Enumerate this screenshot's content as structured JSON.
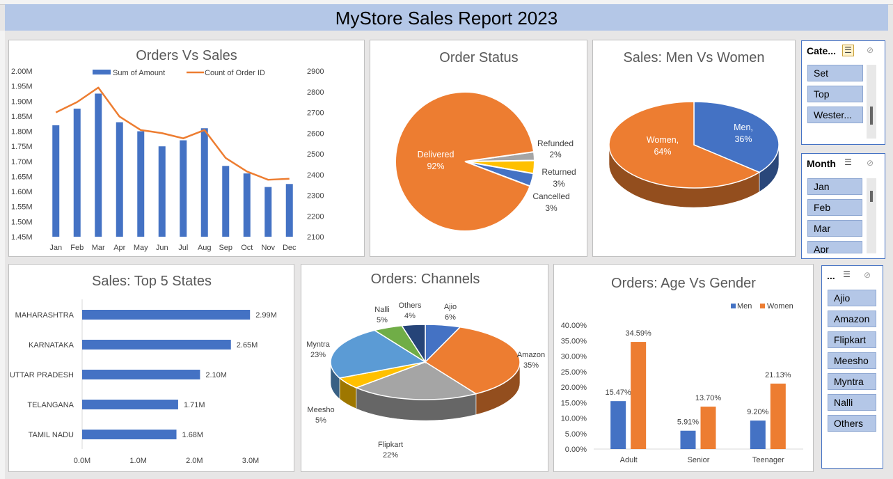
{
  "report_title": "MyStore Sales Report 2023",
  "colors": {
    "blue": "#4472c4",
    "orange": "#ed7d31",
    "gray": "#a5a5a5",
    "yellow": "#ffc000",
    "lightblue": "#5b9bd5",
    "green": "#70ad47",
    "navy": "#264478",
    "banner": "#b4c7e7"
  },
  "chart_data": [
    {
      "id": "orders-vs-sales",
      "type": "bar+line",
      "title": "Orders Vs Sales",
      "categories": [
        "Jan",
        "Feb",
        "Mar",
        "Apr",
        "May",
        "Jun",
        "Jul",
        "Aug",
        "Sep",
        "Oct",
        "Nov",
        "Dec"
      ],
      "series": [
        {
          "name": "Sum of Amount",
          "type": "bar",
          "axis": "left",
          "values": [
            1.82,
            1.875,
            1.925,
            1.83,
            1.8,
            1.75,
            1.77,
            1.81,
            1.685,
            1.66,
            1.615,
            1.625
          ]
        },
        {
          "name": "Count of Order ID",
          "type": "line",
          "axis": "right",
          "values": [
            2700,
            2750,
            2820,
            2680,
            2615,
            2600,
            2575,
            2615,
            2480,
            2415,
            2375,
            2380
          ]
        }
      ],
      "y_left": {
        "min": 1.45,
        "max": 2.0,
        "ticks": [
          "2.00M",
          "1.95M",
          "1.90M",
          "1.85M",
          "1.80M",
          "1.75M",
          "1.70M",
          "1.65M",
          "1.60M",
          "1.55M",
          "1.50M",
          "1.45M"
        ]
      },
      "y_right": {
        "min": 2100,
        "max": 2900,
        "ticks": [
          "2900",
          "2800",
          "2700",
          "2600",
          "2500",
          "2400",
          "2300",
          "2200",
          "2100"
        ]
      }
    },
    {
      "id": "order-status",
      "type": "pie",
      "title": "Order Status",
      "slices": [
        {
          "name": "Delivered",
          "pct": "92%",
          "value": 92
        },
        {
          "name": "Refunded",
          "pct": "2%",
          "value": 2
        },
        {
          "name": "Returned",
          "pct": "3%",
          "value": 3
        },
        {
          "name": "Cancelled",
          "pct": "3%",
          "value": 3
        }
      ]
    },
    {
      "id": "men-vs-women",
      "type": "pie",
      "title": "Sales: Men Vs Women",
      "slices": [
        {
          "name": "Men,",
          "pct": "36%",
          "value": 36
        },
        {
          "name": "Women,",
          "pct": "64%",
          "value": 64
        }
      ]
    },
    {
      "id": "top-states",
      "type": "bar",
      "orientation": "horizontal",
      "title": "Sales: Top 5 States",
      "categories": [
        "MAHARASHTRA",
        "KARNATAKA",
        "UTTAR PRADESH",
        "TELANGANA",
        "TAMIL NADU"
      ],
      "values": [
        2.99,
        2.65,
        2.1,
        1.71,
        1.68
      ],
      "value_labels": [
        "2.99M",
        "2.65M",
        "2.10M",
        "1.71M",
        "1.68M"
      ],
      "xlim": [
        0,
        3
      ],
      "x_ticks": [
        "0.0M",
        "1.0M",
        "2.0M",
        "3.0M"
      ]
    },
    {
      "id": "channels",
      "type": "pie",
      "title": "Orders: Channels",
      "slices": [
        {
          "name": "Ajio",
          "pct": "6%",
          "value": 6
        },
        {
          "name": "Amazon",
          "pct": "35%",
          "value": 35
        },
        {
          "name": "Flipkart",
          "pct": "22%",
          "value": 22
        },
        {
          "name": "Meesho",
          "pct": "5%",
          "value": 5
        },
        {
          "name": "Myntra",
          "pct": "23%",
          "value": 23
        },
        {
          "name": "Nalli",
          "pct": "5%",
          "value": 5
        },
        {
          "name": "Others",
          "pct": "4%",
          "value": 4
        }
      ]
    },
    {
      "id": "age-vs-gender",
      "type": "bar",
      "title": "Orders: Age Vs Gender",
      "categories": [
        "Adult",
        "Senior",
        "Teenager"
      ],
      "series": [
        {
          "name": "Men",
          "values": [
            15.47,
            5.91,
            9.2
          ],
          "labels": [
            "15.47%",
            "5.91%",
            "9.20%"
          ]
        },
        {
          "name": "Women",
          "values": [
            34.59,
            13.7,
            21.13
          ],
          "labels": [
            "34.59%",
            "13.70%",
            "21.13%"
          ]
        }
      ],
      "ylim": [
        0,
        40
      ],
      "y_ticks": [
        "40.00%",
        "35.00%",
        "30.00%",
        "25.00%",
        "20.00%",
        "15.00%",
        "10.00%",
        "5.00%",
        "0.00%"
      ]
    }
  ],
  "slicers": {
    "category": {
      "title": "Cate...",
      "items": [
        "Set",
        "Top",
        "Wester..."
      ]
    },
    "month": {
      "title": "Month",
      "items": [
        "Jan",
        "Feb",
        "Mar",
        "Apr"
      ]
    },
    "channel": {
      "title": "...",
      "items": [
        "Ajio",
        "Amazon",
        "Flipkart",
        "Meesho",
        "Myntra",
        "Nalli",
        "Others"
      ]
    }
  },
  "icons": {
    "multiselect": "☰",
    "clear": "⊘"
  }
}
